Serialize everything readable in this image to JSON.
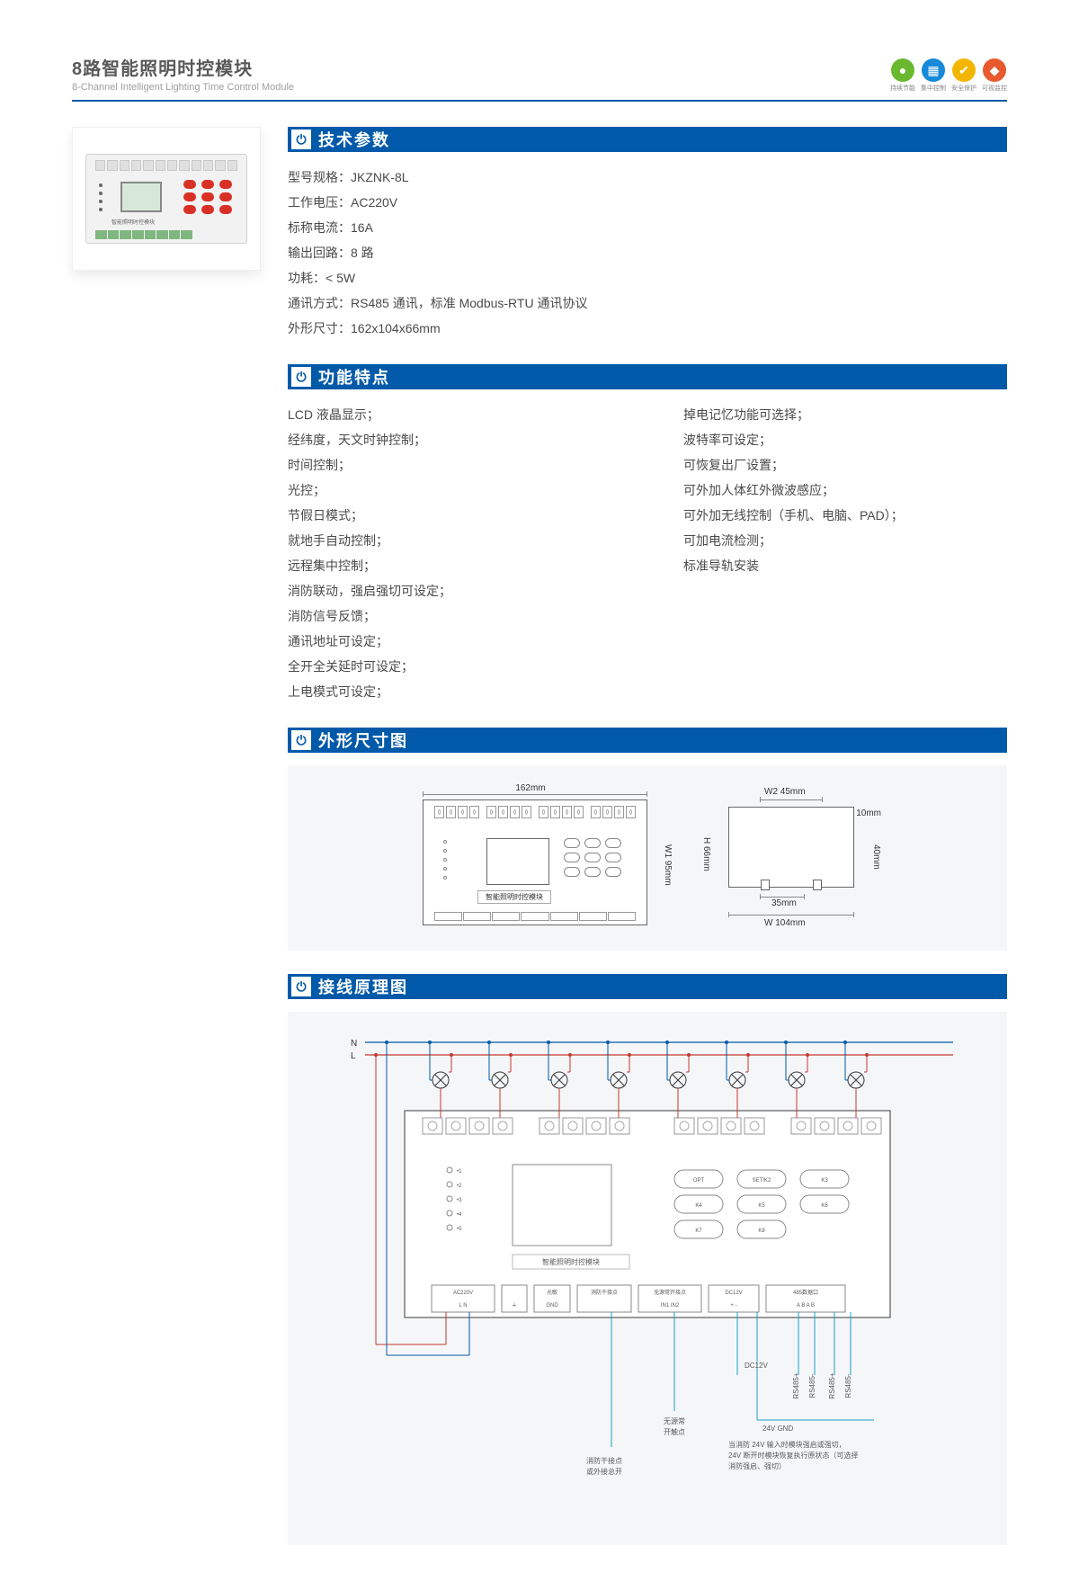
{
  "header": {
    "title_cn": "8路智能照明时控模块",
    "title_en": "8-Channel Intelligent Lighting Time Control Module"
  },
  "badges": [
    {
      "color": "#6ab82f",
      "glyph": "●",
      "label": "持续节能"
    },
    {
      "color": "#1689d9",
      "glyph": "▦",
      "label": "集中控制"
    },
    {
      "color": "#f3b600",
      "glyph": "✔",
      "label": "安全保护"
    },
    {
      "color": "#e85a2d",
      "glyph": "◆",
      "label": "可视监控"
    }
  ],
  "sections": {
    "specs_title": "技术参数",
    "features_title": "功能特点",
    "dims_title": "外形尺寸图",
    "wiring_title": "接线原理图"
  },
  "specs": [
    {
      "k": "型号规格：",
      "v": "JKZNK-8L"
    },
    {
      "k": "工作电压：",
      "v": "AC220V"
    },
    {
      "k": "标称电流：",
      "v": "16A"
    },
    {
      "k": "输出回路：",
      "v": "8 路"
    },
    {
      "k": "功耗：",
      "v": "< 5W"
    },
    {
      "k": "通讯方式：",
      "v": "RS485 通讯，标准 Modbus-RTU 通讯协议"
    },
    {
      "k": "外形尺寸：",
      "v": "162x104x66mm"
    }
  ],
  "features_left": [
    "LCD 液晶显示；",
    "经纬度，天文时钟控制；",
    "时间控制；",
    "光控；",
    "节假日模式；",
    "就地手自动控制；",
    "远程集中控制；",
    "消防联动，强启强切可设定；",
    "消防信号反馈；",
    "通讯地址可设定；",
    "全开全关延时可设定；",
    "上电模式可设定；"
  ],
  "features_right": [
    "掉电记忆功能可选择；",
    "波特率可设定；",
    "可恢复出厂设置；",
    "可外加人体红外微波感应；",
    "可外加无线控制（手机、电脑、PAD）；",
    "可加电流检测；",
    "标准导轨安装"
  ],
  "dimensions": {
    "width_label": "162mm",
    "height_label": "W1  95mm",
    "side_top_label": "W2  45mm",
    "side_h_label": "H  66mm",
    "side_inner_h": "40mm",
    "side_notch": "10mm",
    "side_clip": "35mm",
    "side_w_label": "W  104mm",
    "device_caption": "智能照明时控模块",
    "colors": {
      "outline": "#666666",
      "bg": "#f5f6f8",
      "panel": "#ffffff"
    }
  },
  "wiring": {
    "rails": {
      "N": "N",
      "L": "L"
    },
    "device_caption": "智能照明时控模块",
    "buttons": [
      "OPT",
      "SET/K2",
      "K3",
      "K4",
      "K5",
      "K6",
      "K7",
      "K8"
    ],
    "bottom_ports": [
      {
        "title": "AC220V",
        "pins": "L  N"
      },
      {
        "title": "",
        "pins": "⏚"
      },
      {
        "title": "光敏",
        "pins": "GND"
      },
      {
        "title": "消防干接点",
        "pins": ""
      },
      {
        "title": "无源常开接点",
        "pins": "IN1 IN2"
      },
      {
        "title": "DC12V",
        "pins": "+  -"
      },
      {
        "title": "485数据口",
        "pins": "A B A B"
      }
    ],
    "leads": [
      "消防干接点\n或外接总开",
      "无源常\n开触点",
      "DC12V",
      "24V GND",
      "RS485+",
      "RS485-",
      "RS485+",
      "RS485-"
    ],
    "note": "当消防 24V 输入时模块强启或强切，\n24V 断开时模块恢复执行原状态（可选择\n消防强启、强切）",
    "colors": {
      "L_line": "#c23a2e",
      "N_line": "#0059a9",
      "signal_line": "#1aa0c8",
      "outline": "#5a5a5a",
      "panel_bg": "#ffffff",
      "area_bg": "#f5f6f8",
      "lamp": "#333333"
    }
  },
  "product_visual": {
    "body_color": "#f2f2f2",
    "lcd_color": "#d8e8d8",
    "key_color": "#d93025",
    "terminal_color": "#7fb77f",
    "caption": "智能照明时控模块"
  }
}
